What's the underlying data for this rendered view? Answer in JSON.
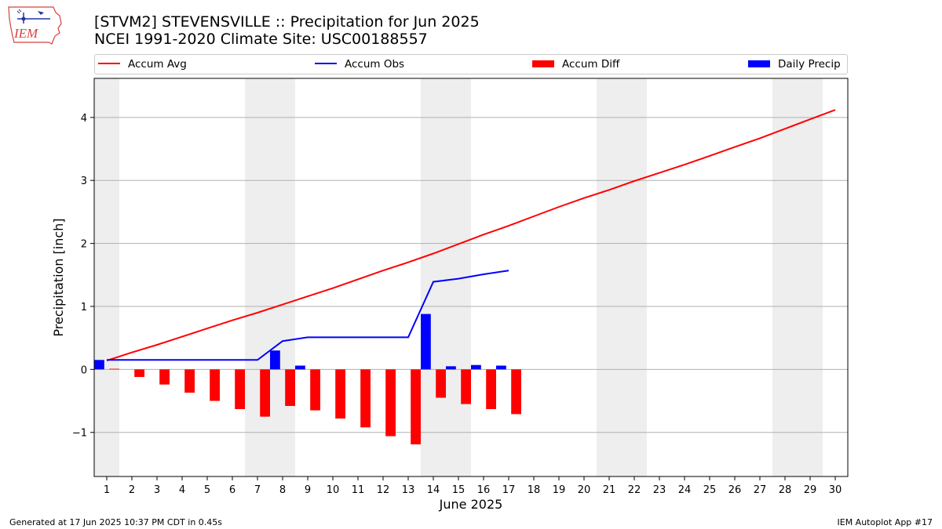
{
  "header": {
    "title_line1": "[STVM2] STEVENSVILLE :: Precipitation for Jun 2025",
    "title_line2": "NCEI 1991-2020 Climate Site: USC00188557",
    "logo_text": "IEM"
  },
  "footer": {
    "generated": "Generated at 17 Jun 2025 10:37 PM CDT in 0.45s",
    "app": "IEM Autoplot App #17"
  },
  "colors": {
    "accum_avg": "#ff0000",
    "accum_obs": "#0000ff",
    "accum_diff": "#ff0000",
    "daily_precip": "#0000ff",
    "weekend_band": "#eeeeee",
    "grid": "#b0b0b0"
  },
  "chart_data": {
    "type": "line",
    "xlabel": "June 2025",
    "ylabel": "Precipitation [inch]",
    "xlim": [
      0.5,
      30.5
    ],
    "ylim": [
      -1.7,
      4.62
    ],
    "x": [
      1,
      2,
      3,
      4,
      5,
      6,
      7,
      8,
      9,
      10,
      11,
      12,
      13,
      14,
      15,
      16,
      17,
      18,
      19,
      20,
      21,
      22,
      23,
      24,
      25,
      26,
      27,
      28,
      29,
      30
    ],
    "yticks": [
      -1,
      0,
      1,
      2,
      3,
      4
    ],
    "ytick_labels": [
      "−1",
      "0",
      "1",
      "2",
      "3",
      "4"
    ],
    "grid": "horizontal",
    "legend_position": "top",
    "weekend_days": [
      1,
      7,
      8,
      14,
      15,
      21,
      22,
      28,
      29
    ],
    "series": [
      {
        "name": "Accum Avg",
        "kind": "line",
        "x": [
          1,
          2,
          3,
          4,
          5,
          6,
          7,
          8,
          9,
          10,
          11,
          12,
          13,
          14,
          15,
          16,
          17,
          18,
          19,
          20,
          21,
          22,
          23,
          24,
          25,
          26,
          27,
          28,
          29,
          30
        ],
        "values": [
          0.14,
          0.27,
          0.39,
          0.52,
          0.65,
          0.78,
          0.9,
          1.03,
          1.16,
          1.29,
          1.43,
          1.57,
          1.7,
          1.84,
          1.99,
          2.14,
          2.28,
          2.43,
          2.58,
          2.72,
          2.85,
          2.99,
          3.12,
          3.25,
          3.39,
          3.53,
          3.67,
          3.82,
          3.97,
          4.12
        ]
      },
      {
        "name": "Accum Obs",
        "kind": "line",
        "x": [
          1,
          2,
          3,
          4,
          5,
          6,
          7,
          8,
          9,
          10,
          11,
          12,
          13,
          14,
          15,
          16,
          17
        ],
        "values": [
          0.15,
          0.15,
          0.15,
          0.15,
          0.15,
          0.15,
          0.15,
          0.45,
          0.51,
          0.51,
          0.51,
          0.51,
          0.51,
          1.39,
          1.44,
          1.51,
          1.57
        ]
      },
      {
        "name": "Accum Diff",
        "kind": "bar",
        "x": [
          1,
          2,
          3,
          4,
          5,
          6,
          7,
          8,
          9,
          10,
          11,
          12,
          13,
          14,
          15,
          16,
          17
        ],
        "values": [
          0.01,
          -0.12,
          -0.24,
          -0.37,
          -0.5,
          -0.63,
          -0.75,
          -0.58,
          -0.65,
          -0.78,
          -0.92,
          -1.06,
          -1.19,
          -0.45,
          -0.55,
          -0.63,
          -0.71
        ]
      },
      {
        "name": "Daily Precip",
        "kind": "bar",
        "x": [
          1,
          2,
          3,
          4,
          5,
          6,
          7,
          8,
          9,
          10,
          11,
          12,
          13,
          14,
          15,
          16,
          17
        ],
        "values": [
          0.15,
          0,
          0,
          0,
          0,
          0,
          0,
          0.3,
          0.06,
          0,
          0,
          0,
          0,
          0.88,
          0.05,
          0.07,
          0.06
        ]
      }
    ]
  }
}
